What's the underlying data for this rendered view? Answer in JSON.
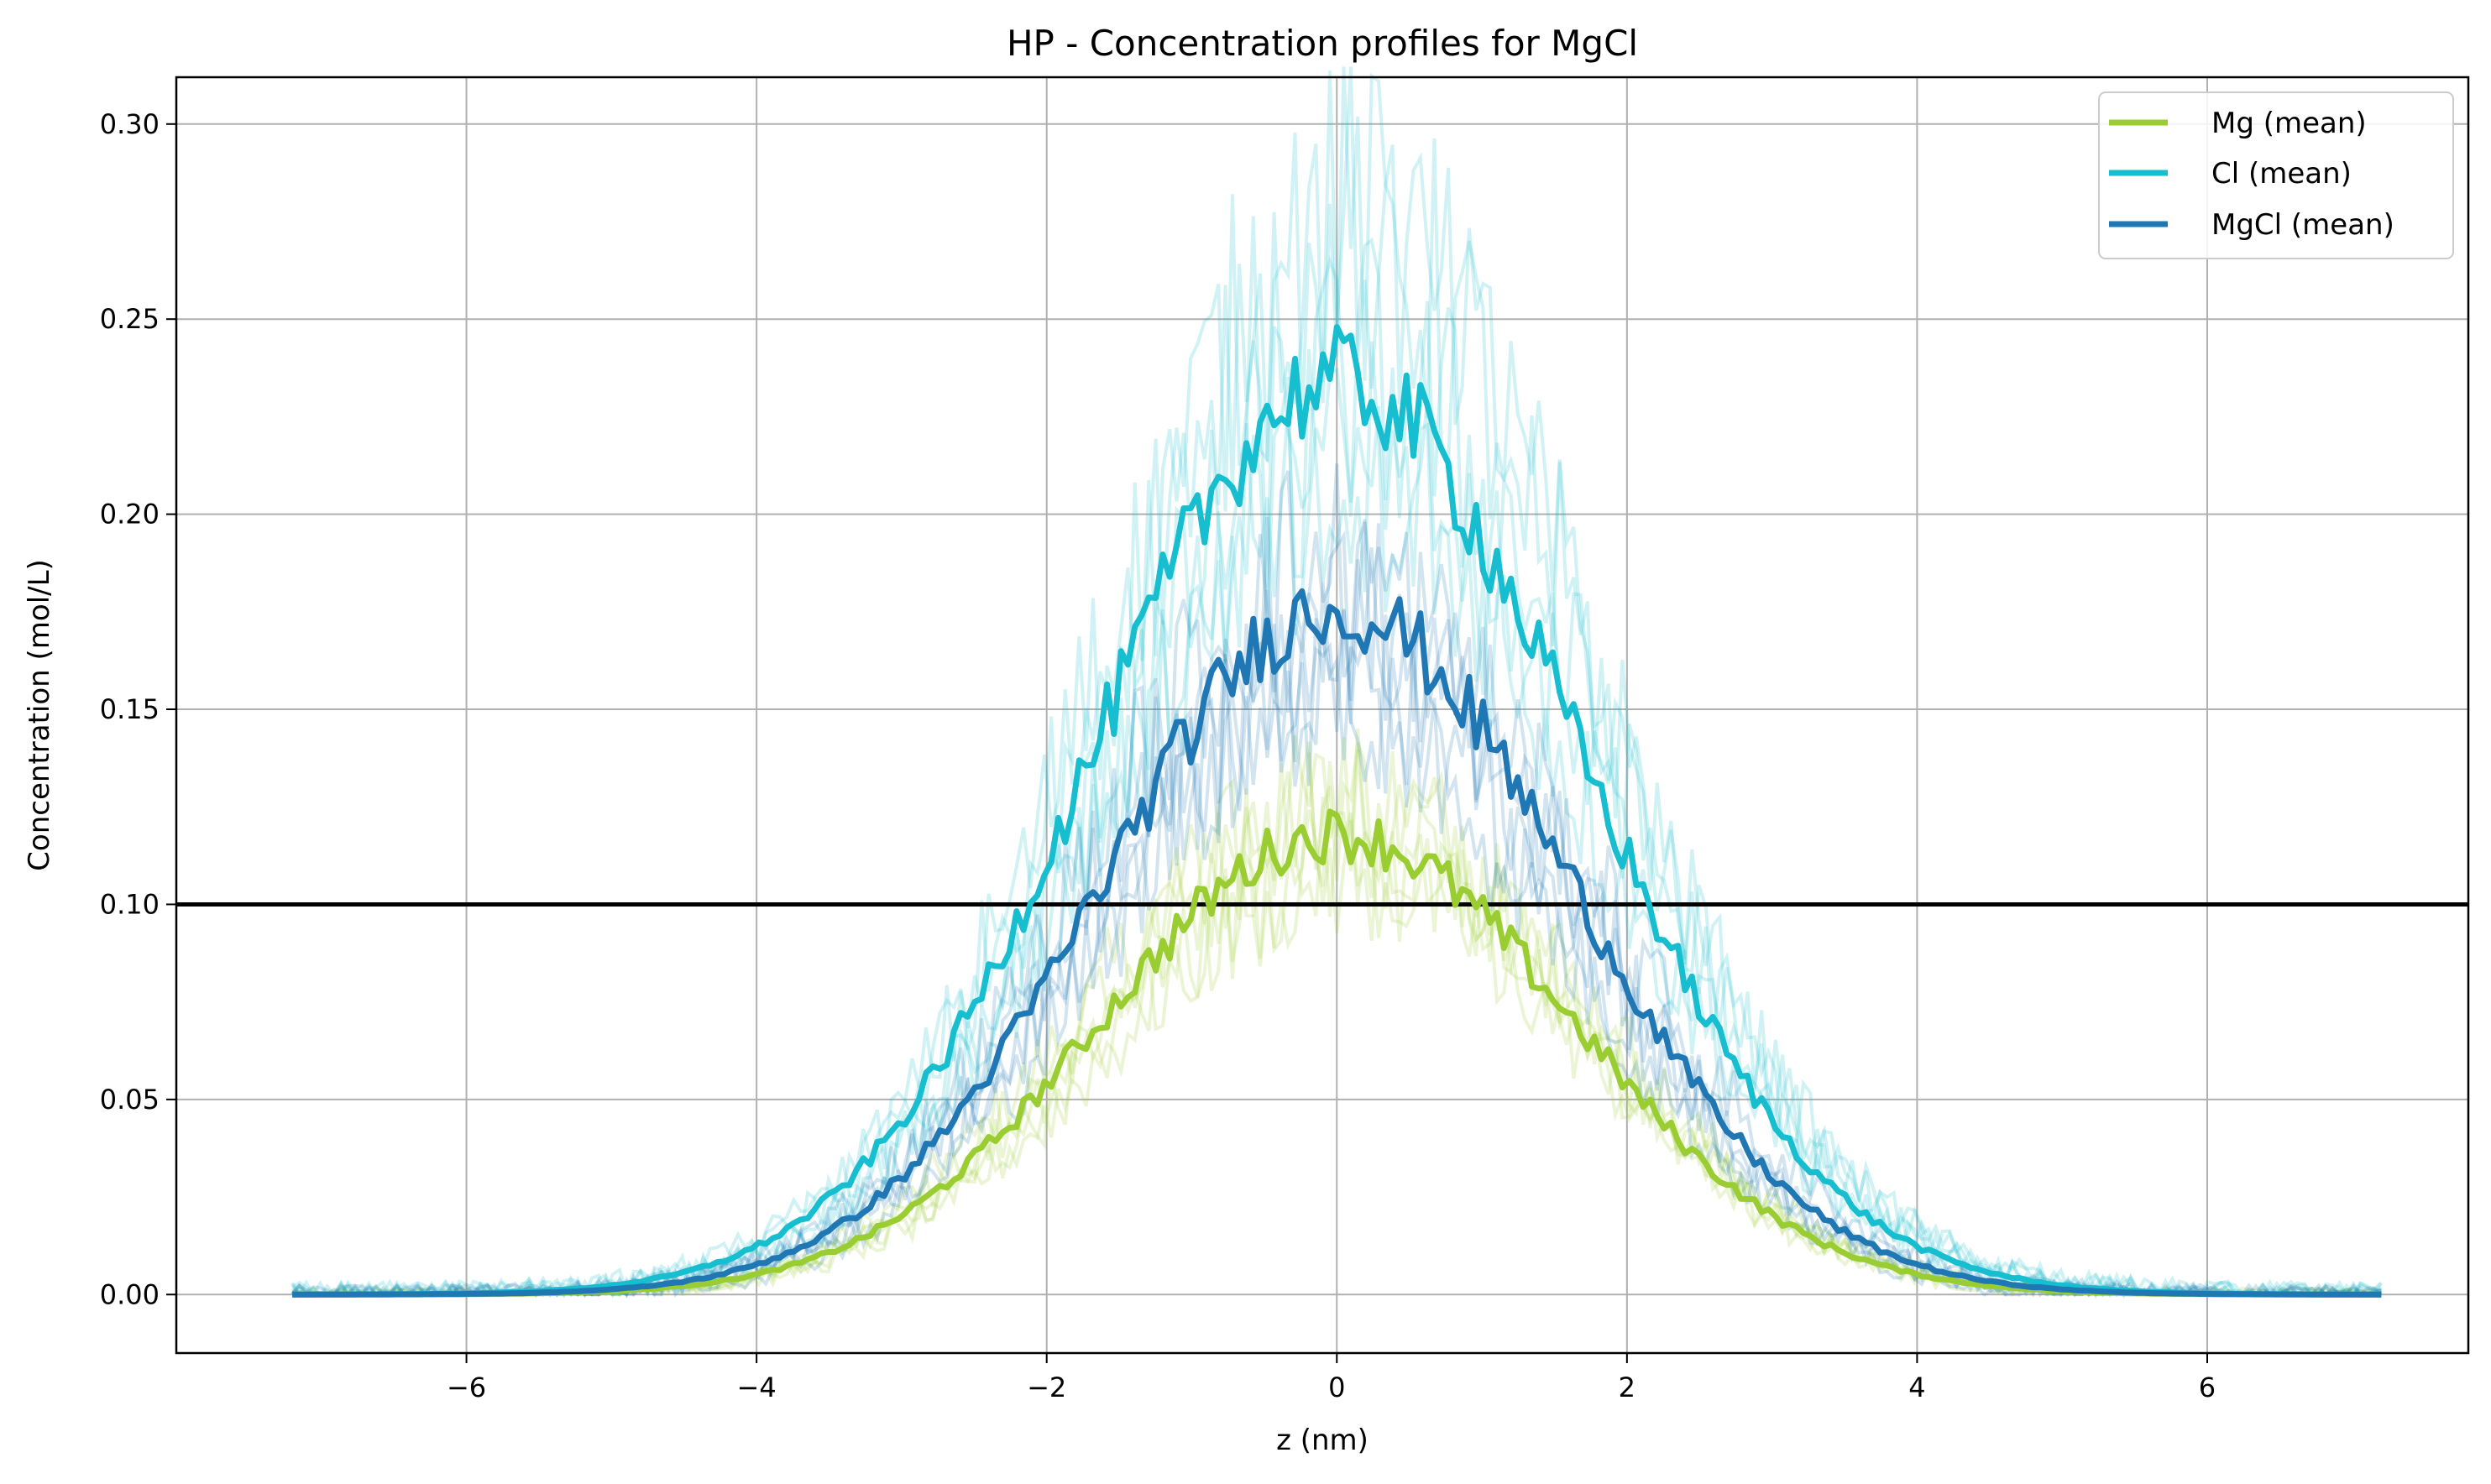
{
  "chart_data": {
    "type": "line",
    "title": "HP - Concentration profiles for MgCl",
    "xlabel": "z (nm)",
    "ylabel": "Concentration (mol/L)",
    "xlim": [
      -8.0,
      7.8
    ],
    "ylim": [
      -0.015,
      0.312
    ],
    "xticks": [
      -6,
      -4,
      -2,
      0,
      2,
      4,
      6
    ],
    "xtick_labels": [
      "−6",
      "−4",
      "−2",
      "0",
      "2",
      "4",
      "6"
    ],
    "yticks": [
      0.0,
      0.05,
      0.1,
      0.15,
      0.2,
      0.25,
      0.3
    ],
    "ytick_labels": [
      "0.00",
      "0.05",
      "0.10",
      "0.15",
      "0.20",
      "0.25",
      "0.30"
    ],
    "grid": true,
    "legend_position": "top-right",
    "reference_line": {
      "y": 0.1,
      "color": "#000000"
    },
    "x_range": [
      -7.2,
      7.2
    ],
    "series": [
      {
        "name": "Mg (mean)",
        "color": "#9acd32",
        "peak": 0.118,
        "width": 1.6,
        "x": [
          -7.2,
          -6,
          -5,
          -4.5,
          -4,
          -3.5,
          -3,
          -2.5,
          -2,
          -1.5,
          -1,
          -0.5,
          0,
          0.5,
          1,
          1.5,
          2,
          2.5,
          3,
          3.5,
          4,
          4.5,
          5,
          6,
          7.2
        ],
        "values": [
          0.0,
          0.0,
          0.001,
          0.003,
          0.008,
          0.016,
          0.03,
          0.047,
          0.066,
          0.083,
          0.099,
          0.113,
          0.118,
          0.111,
          0.098,
          0.081,
          0.063,
          0.045,
          0.029,
          0.016,
          0.008,
          0.003,
          0.001,
          0.0,
          0.0
        ]
      },
      {
        "name": "Cl (mean)",
        "color": "#17becf",
        "peak": 0.234,
        "width": 1.65,
        "x": [
          -7.2,
          -6,
          -5,
          -4.5,
          -4,
          -3.5,
          -3,
          -2.5,
          -2,
          -1.5,
          -1,
          -0.5,
          0,
          0.5,
          1,
          1.5,
          2,
          2.5,
          3,
          3.5,
          4,
          4.5,
          5,
          6,
          7.2
        ],
        "values": [
          0.0,
          0.001,
          0.004,
          0.008,
          0.016,
          0.032,
          0.059,
          0.094,
          0.134,
          0.172,
          0.205,
          0.226,
          0.234,
          0.226,
          0.203,
          0.167,
          0.128,
          0.089,
          0.056,
          0.031,
          0.015,
          0.007,
          0.003,
          0.0,
          0.0
        ]
      },
      {
        "name": "MgCl (mean)",
        "color": "#1f77b4",
        "peak": 0.176,
        "width": 1.6,
        "x": [
          -7.2,
          -6,
          -5,
          -4.5,
          -4,
          -3.5,
          -3,
          -2.5,
          -2,
          -1.5,
          -1,
          -0.5,
          0,
          0.5,
          1,
          1.5,
          2,
          2.5,
          3,
          3.5,
          4,
          4.5,
          5,
          6,
          7.2
        ],
        "values": [
          0.0,
          0.001,
          0.003,
          0.006,
          0.012,
          0.024,
          0.044,
          0.071,
          0.101,
          0.13,
          0.154,
          0.17,
          0.176,
          0.169,
          0.151,
          0.124,
          0.096,
          0.067,
          0.042,
          0.023,
          0.011,
          0.005,
          0.002,
          0.0,
          0.0
        ]
      }
    ],
    "individual_runs_per_series": 5
  }
}
